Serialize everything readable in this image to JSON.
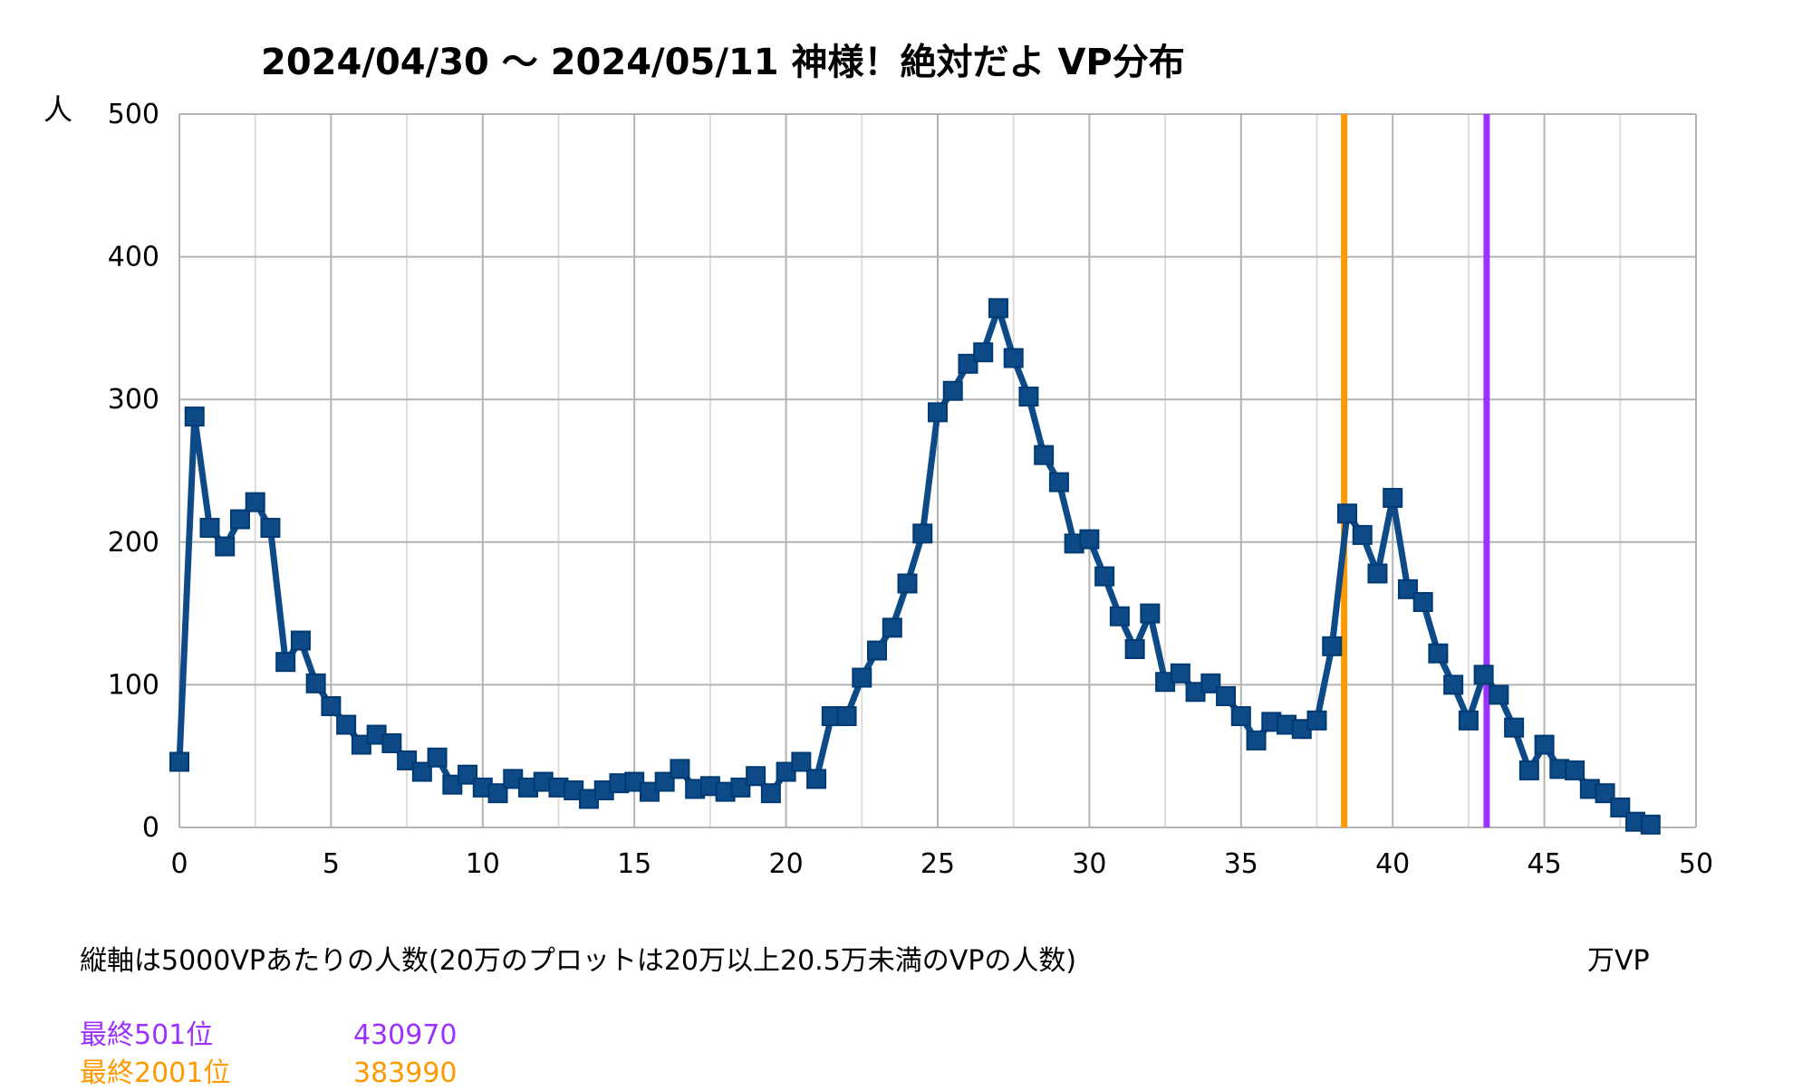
{
  "chart_data": {
    "type": "line",
    "title": "2024/04/30 〜 2024/05/11 神様！絶対だよ VP分布",
    "ylabel": "人",
    "xlabel": "万VP",
    "xlim": [
      0,
      50
    ],
    "ylim": [
      0,
      500
    ],
    "x_ticks": [
      "0",
      "5",
      "10",
      "15",
      "20",
      "25",
      "30",
      "35",
      "40",
      "45",
      "50"
    ],
    "y_ticks": [
      "0",
      "100",
      "200",
      "300",
      "400",
      "500"
    ],
    "grid": true,
    "series": [
      {
        "color": "#0d4a87",
        "marker": "square",
        "x": [
          0,
          0.5,
          1,
          1.5,
          2,
          2.5,
          3,
          3.5,
          4,
          4.5,
          5,
          5.5,
          6,
          6.5,
          7,
          7.5,
          8,
          8.5,
          9,
          9.5,
          10,
          10.5,
          11,
          11.5,
          12,
          12.5,
          13,
          13.5,
          14,
          14.5,
          15,
          15.5,
          16,
          16.5,
          17,
          17.5,
          18,
          18.5,
          19,
          19.5,
          20,
          20.5,
          21,
          21.5,
          22,
          22.5,
          23,
          23.5,
          24,
          24.5,
          25,
          25.5,
          26,
          26.5,
          27,
          27.5,
          28,
          28.5,
          29,
          29.5,
          30,
          30.5,
          31,
          31.5,
          32,
          32.5,
          33,
          33.5,
          34,
          34.5,
          35,
          35.5,
          36,
          36.5,
          37,
          37.5,
          38,
          38.5,
          39,
          39.5,
          40,
          40.5,
          41,
          41.5,
          42,
          42.5,
          43,
          43.5,
          44,
          44.5,
          45,
          45.5,
          46,
          46.5,
          47,
          47.5,
          48,
          48.5
        ],
        "values": [
          46,
          288,
          210,
          197,
          216,
          228,
          210,
          116,
          131,
          101,
          85,
          72,
          58,
          65,
          59,
          47,
          39,
          49,
          30,
          37,
          28,
          24,
          34,
          28,
          32,
          28,
          26,
          20,
          26,
          31,
          32,
          25,
          32,
          41,
          27,
          29,
          25,
          28,
          36,
          24,
          39,
          46,
          34,
          78,
          78,
          105,
          124,
          140,
          171,
          206,
          291,
          306,
          325,
          333,
          364,
          329,
          302,
          261,
          242,
          199,
          202,
          176,
          148,
          125,
          150,
          102,
          108,
          95,
          101,
          92,
          78,
          61,
          74,
          72,
          69,
          75,
          127,
          220,
          205,
          178,
          231,
          167,
          158,
          122,
          100,
          75,
          107,
          93,
          70,
          40,
          58,
          41,
          40,
          27,
          24,
          14,
          4,
          2
        ]
      }
    ],
    "reference_lines": [
      {
        "x": 38.399,
        "color": "#ff9900"
      },
      {
        "x": 43.097,
        "color": "#9b30ff"
      }
    ]
  },
  "note": "縦軸は5000VPあたりの人数(20万のプロットは20万以上20.5万未満のVPの人数)",
  "legend": [
    {
      "label": "最終501位",
      "value": "430970",
      "color": "#9b30ff"
    },
    {
      "label": "最終2001位",
      "value": "383990",
      "color": "#ff9900"
    }
  ]
}
